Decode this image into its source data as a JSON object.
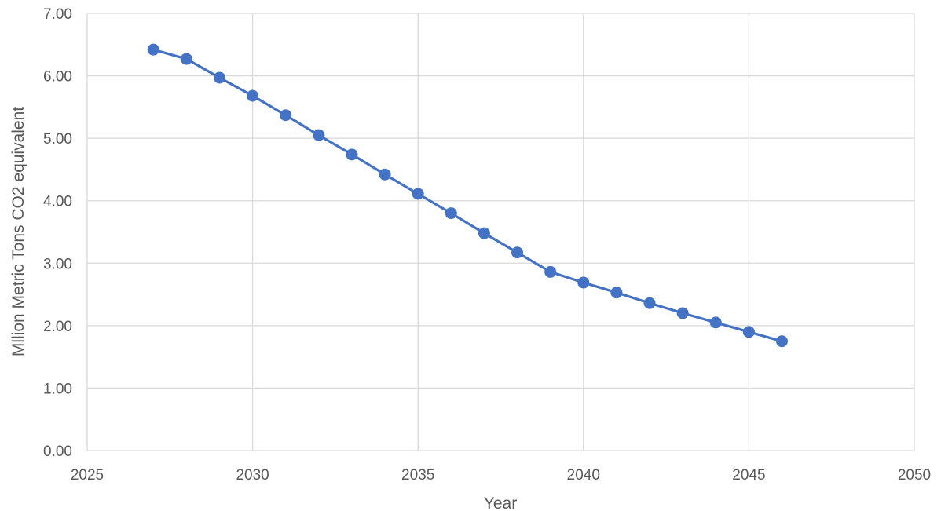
{
  "chart_data": {
    "type": "scatter",
    "title": "",
    "xlabel": "Year",
    "ylabel": "Mllion Metric Tons CO2 equivalent",
    "xlim": [
      2025,
      2050
    ],
    "ylim": [
      0,
      7
    ],
    "x_ticks": [
      "2025",
      "2030",
      "2035",
      "2040",
      "2045",
      "2050"
    ],
    "y_ticks": [
      "0.00",
      "1.00",
      "2.00",
      "3.00",
      "4.00",
      "5.00",
      "6.00",
      "7.00"
    ],
    "grid": true,
    "legend": "none",
    "series": [
      {
        "color": "#4472c4",
        "style": "line-with-markers",
        "x": [
          2027,
          2028,
          2029,
          2030,
          2031,
          2032,
          2033,
          2034,
          2035,
          2036,
          2037,
          2038,
          2039,
          2040,
          2041,
          2042,
          2043,
          2044,
          2045,
          2046
        ],
        "y": [
          6.42,
          6.27,
          5.97,
          5.68,
          5.37,
          5.05,
          4.74,
          4.42,
          4.11,
          3.8,
          3.48,
          3.17,
          2.86,
          2.69,
          2.53,
          2.36,
          2.2,
          2.05,
          1.9,
          1.75
        ]
      }
    ]
  }
}
